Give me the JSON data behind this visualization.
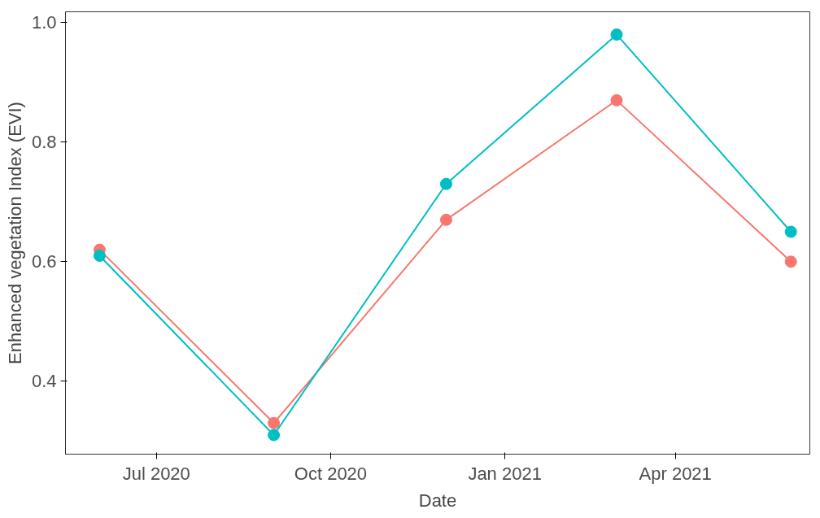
{
  "chart_data": {
    "type": "line",
    "xlabel": "Date",
    "ylabel": "Enhanced vegetation Index (EVI)",
    "x": [
      "2020-06-01",
      "2020-09-01",
      "2020-12-01",
      "2021-03-01",
      "2021-06-01"
    ],
    "series": [
      {
        "color": "#f8766d",
        "values": [
          0.62,
          0.33,
          0.67,
          0.87,
          0.6
        ]
      },
      {
        "color": "#00bfc4",
        "values": [
          0.61,
          0.31,
          0.73,
          0.98,
          0.65
        ]
      }
    ],
    "xlim": [
      "2020-05-14",
      "2021-06-11"
    ],
    "xticks": [
      {
        "value": "2020-07-01",
        "label": "Jul 2020"
      },
      {
        "value": "2020-10-01",
        "label": "Oct 2020"
      },
      {
        "value": "2021-01-01",
        "label": "Jan 2021"
      },
      {
        "value": "2021-04-01",
        "label": "Apr 2021"
      }
    ],
    "ylim": [
      0.278,
      1.018
    ],
    "yticks": [
      0.4,
      0.6,
      0.8,
      {
        "value": 1.0,
        "label": "1.0"
      }
    ],
    "grid": false,
    "marker": "circle",
    "line_style": "solid"
  }
}
